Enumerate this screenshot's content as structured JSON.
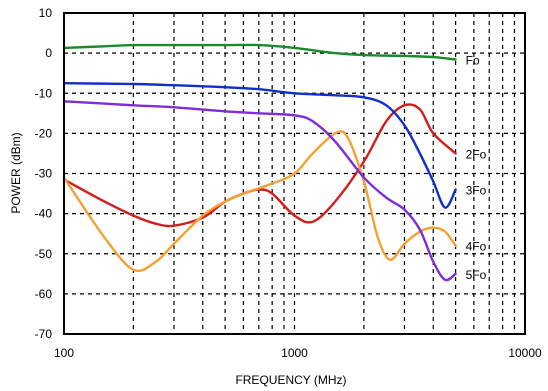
{
  "chart_data": {
    "type": "line",
    "title": "",
    "xlabel": "FREQUENCY (MHz)",
    "ylabel": "POWER (dBm)",
    "xscale": "log",
    "xlim": [
      100,
      10000
    ],
    "ylim": [
      -70,
      10
    ],
    "xticks": [
      100,
      1000,
      10000
    ],
    "xtick_labels": [
      "100",
      "1000",
      "10000"
    ],
    "yticks": [
      10,
      0,
      -10,
      -20,
      -30,
      -40,
      -50,
      -60,
      -70
    ],
    "ytick_labels": [
      "10",
      "0",
      "-10",
      "-20",
      "-30",
      "-40",
      "-50",
      "-60",
      "-70"
    ],
    "grid": true,
    "legend": "inline labels at right end of each curve",
    "series": [
      {
        "name": "Fo",
        "color": "#1a8a2e",
        "x": [
          100,
          150,
          200,
          300,
          500,
          700,
          1000,
          1500,
          2000,
          3000,
          4000,
          5000
        ],
        "y": [
          1.3,
          1.7,
          2,
          2,
          2,
          2,
          1.3,
          0,
          -0.5,
          -0.7,
          -1.0,
          -1.6
        ]
      },
      {
        "name": "2Fo",
        "color": "#d41c1c",
        "x": [
          100,
          150,
          200,
          250,
          300,
          400,
          500,
          600,
          700,
          800,
          1000,
          1200,
          1500,
          2000,
          2500,
          3000,
          3500,
          4000,
          5000
        ],
        "y": [
          -31.5,
          -37,
          -40.5,
          -42.5,
          -43,
          -41,
          -37,
          -35,
          -34,
          -35,
          -40.5,
          -42,
          -37,
          -27,
          -17,
          -13,
          -14,
          -20,
          -25
        ]
      },
      {
        "name": "3Fo",
        "color": "#1030c8",
        "x": [
          100,
          200,
          300,
          500,
          700,
          1000,
          1500,
          2000,
          2500,
          3000,
          3500,
          4000,
          4500,
          5000
        ],
        "y": [
          -7.5,
          -7.7,
          -8,
          -8.5,
          -9,
          -10,
          -10.5,
          -11,
          -13,
          -18,
          -25,
          -32,
          -38.5,
          -34
        ]
      },
      {
        "name": "4Fo",
        "color": "#f5a033",
        "x": [
          100,
          150,
          200,
          250,
          300,
          400,
          500,
          600,
          800,
          1000,
          1200,
          1500,
          1700,
          2000,
          2300,
          2600,
          3000,
          3500,
          4000,
          4500,
          5000
        ],
        "y": [
          -31,
          -46,
          -54,
          -52,
          -47.5,
          -40.5,
          -37,
          -35,
          -32.5,
          -30,
          -25,
          -20,
          -21,
          -32,
          -46,
          -51.5,
          -47.5,
          -44.5,
          -43.5,
          -44.5,
          -48
        ]
      },
      {
        "name": "5Fo",
        "color": "#7d2ed8",
        "x": [
          100,
          200,
          300,
          500,
          700,
          1000,
          1200,
          1500,
          2000,
          2500,
          3000,
          3500,
          4000,
          4500,
          5000
        ],
        "y": [
          -12,
          -13,
          -13.5,
          -14.5,
          -15,
          -15.5,
          -17,
          -22,
          -31,
          -36,
          -39,
          -44,
          -52,
          -56.5,
          -55
        ]
      }
    ]
  }
}
